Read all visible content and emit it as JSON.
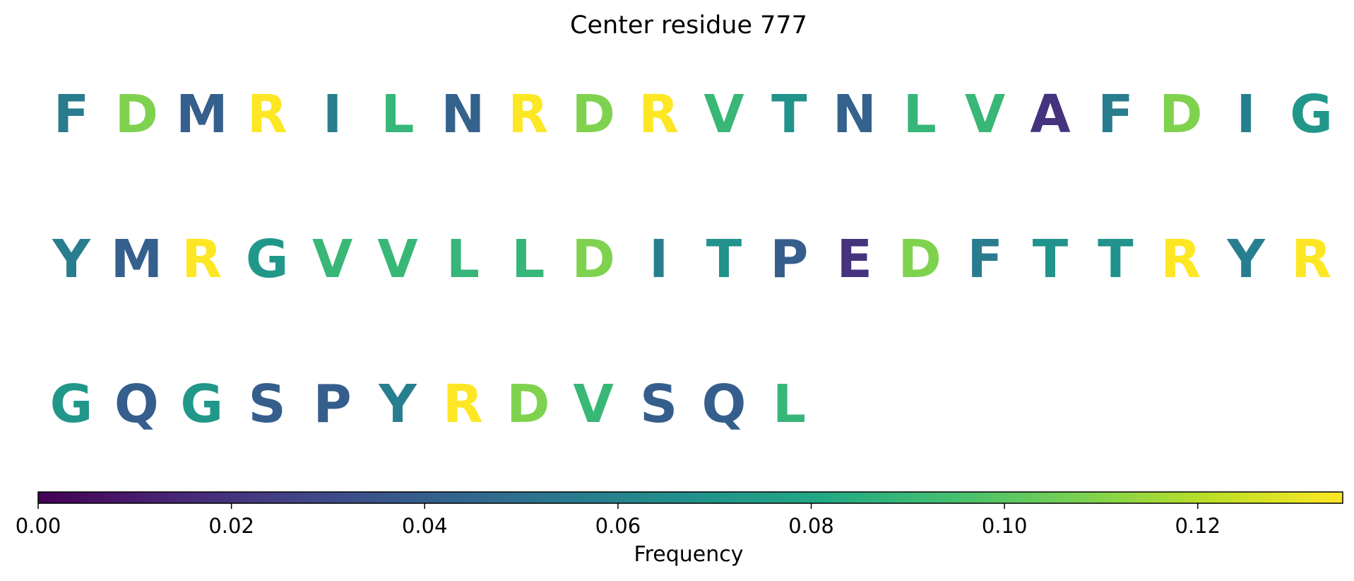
{
  "chart_data": {
    "type": "sequence-heatmap",
    "title": "Center residue 777",
    "colormap": "viridis",
    "colorbar": {
      "label": "Frequency",
      "range": [
        0,
        0.135
      ],
      "ticks": [
        0,
        0.02,
        0.04,
        0.06,
        0.08,
        0.1,
        0.12
      ],
      "tick_labels": [
        "0.00",
        "0.02",
        "0.04",
        "0.06",
        "0.08",
        "0.10",
        "0.12"
      ]
    },
    "residues_per_row": 20,
    "residues": [
      {
        "letter": "F",
        "value": 0.056
      },
      {
        "letter": "D",
        "value": 0.109
      },
      {
        "letter": "M",
        "value": 0.041
      },
      {
        "letter": "R",
        "value": 0.135
      },
      {
        "letter": "I",
        "value": 0.058
      },
      {
        "letter": "L",
        "value": 0.089
      },
      {
        "letter": "N",
        "value": 0.042
      },
      {
        "letter": "R",
        "value": 0.135
      },
      {
        "letter": "D",
        "value": 0.109
      },
      {
        "letter": "R",
        "value": 0.135
      },
      {
        "letter": "V",
        "value": 0.09
      },
      {
        "letter": "T",
        "value": 0.068
      },
      {
        "letter": "N",
        "value": 0.042
      },
      {
        "letter": "L",
        "value": 0.089
      },
      {
        "letter": "V",
        "value": 0.09
      },
      {
        "letter": "A",
        "value": 0.02
      },
      {
        "letter": "F",
        "value": 0.056
      },
      {
        "letter": "D",
        "value": 0.109
      },
      {
        "letter": "I",
        "value": 0.058
      },
      {
        "letter": "G",
        "value": 0.071
      },
      {
        "letter": "Y",
        "value": 0.057
      },
      {
        "letter": "M",
        "value": 0.041
      },
      {
        "letter": "R",
        "value": 0.135
      },
      {
        "letter": "G",
        "value": 0.071
      },
      {
        "letter": "V",
        "value": 0.09
      },
      {
        "letter": "V",
        "value": 0.09
      },
      {
        "letter": "L",
        "value": 0.089
      },
      {
        "letter": "L",
        "value": 0.089
      },
      {
        "letter": "D",
        "value": 0.109
      },
      {
        "letter": "I",
        "value": 0.058
      },
      {
        "letter": "T",
        "value": 0.068
      },
      {
        "letter": "P",
        "value": 0.04
      },
      {
        "letter": "E",
        "value": 0.02
      },
      {
        "letter": "D",
        "value": 0.109
      },
      {
        "letter": "F",
        "value": 0.056
      },
      {
        "letter": "T",
        "value": 0.068
      },
      {
        "letter": "T",
        "value": 0.068
      },
      {
        "letter": "R",
        "value": 0.135
      },
      {
        "letter": "Y",
        "value": 0.057
      },
      {
        "letter": "R",
        "value": 0.135
      },
      {
        "letter": "G",
        "value": 0.071
      },
      {
        "letter": "Q",
        "value": 0.04
      },
      {
        "letter": "G",
        "value": 0.071
      },
      {
        "letter": "S",
        "value": 0.04
      },
      {
        "letter": "P",
        "value": 0.04
      },
      {
        "letter": "Y",
        "value": 0.057
      },
      {
        "letter": "R",
        "value": 0.135
      },
      {
        "letter": "D",
        "value": 0.109
      },
      {
        "letter": "V",
        "value": 0.09
      },
      {
        "letter": "S",
        "value": 0.04
      },
      {
        "letter": "Q",
        "value": 0.04
      },
      {
        "letter": "L",
        "value": 0.089
      }
    ]
  }
}
